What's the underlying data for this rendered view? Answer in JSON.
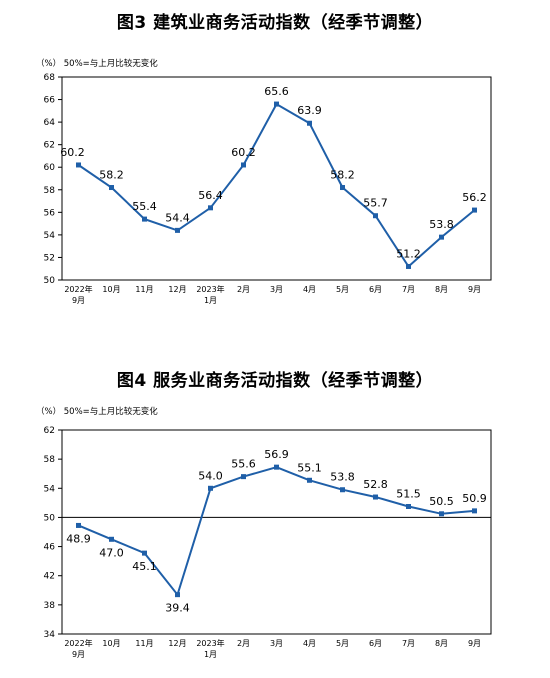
{
  "line_color": "#1f5fa8",
  "chart_data": [
    {
      "type": "line",
      "title": "图3  建筑业商务活动指数（经季节调整）",
      "unit_note": "（%）  50%=与上月比较无变化",
      "categories": [
        "2022年\n9月",
        "10月",
        "11月",
        "12月",
        "2023年\n1月",
        "2月",
        "3月",
        "4月",
        "5月",
        "6月",
        "7月",
        "8月",
        "9月"
      ],
      "values": [
        60.2,
        58.2,
        55.4,
        54.4,
        56.4,
        60.2,
        65.6,
        63.9,
        58.2,
        55.7,
        51.2,
        53.8,
        56.2
      ],
      "value_labels": [
        "60.2",
        "58.2",
        "55.4",
        "54.4",
        "56.4",
        "60.2",
        "65.6",
        "63.9",
        "58.2",
        "55.7",
        "51.2",
        "53.8",
        "56.2"
      ],
      "y_ticks": [
        "68",
        "66",
        "64",
        "62",
        "60",
        "58",
        "56",
        "54",
        "52",
        "50"
      ],
      "ylim": [
        50,
        68
      ],
      "grid": false,
      "reference_line": null
    },
    {
      "type": "line",
      "title": "图4  服务业商务活动指数（经季节调整）",
      "unit_note": "（%）  50%=与上月比较无变化",
      "categories": [
        "2022年\n9月",
        "10月",
        "11月",
        "12月",
        "2023年\n1月",
        "2月",
        "3月",
        "4月",
        "5月",
        "6月",
        "7月",
        "8月",
        "9月"
      ],
      "values": [
        48.9,
        47.0,
        45.1,
        39.4,
        54.0,
        55.6,
        56.9,
        55.1,
        53.8,
        52.8,
        51.5,
        50.5,
        50.9
      ],
      "value_labels": [
        "48.9",
        "47.0",
        "45.1",
        "39.4",
        "54.0",
        "55.6",
        "56.9",
        "55.1",
        "53.8",
        "52.8",
        "51.5",
        "50.5",
        "50.9"
      ],
      "y_ticks": [
        "62",
        "58",
        "54",
        "50",
        "46",
        "42",
        "38",
        "34"
      ],
      "ylim": [
        34,
        62
      ],
      "grid": false,
      "reference_line": 50
    }
  ]
}
